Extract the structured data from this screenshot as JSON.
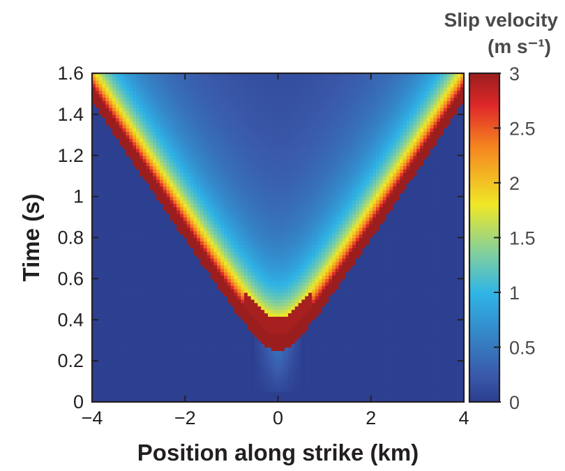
{
  "chart_data": {
    "type": "heatmap",
    "xlabel": "Position along strike (km)",
    "ylabel": "Time (s)",
    "xlim": [
      -4,
      4
    ],
    "ylim": [
      0,
      1.6
    ],
    "x_ticks": [
      -4,
      -2,
      0,
      2,
      4
    ],
    "x_tick_labels": [
      "−4",
      "−2",
      "0",
      "2",
      "4"
    ],
    "y_ticks": [
      0,
      0.2,
      0.4,
      0.6,
      0.8,
      1,
      1.2,
      1.4,
      1.6
    ],
    "y_tick_labels": [
      "0",
      "0.2",
      "0.4",
      "0.6",
      "0.8",
      "1",
      "1.2",
      "1.4",
      "1.6"
    ],
    "colorbar": {
      "title_line1": "Slip velocity",
      "title_line2": "(m s⁻¹)",
      "min": 0,
      "max": 3,
      "ticks": [
        0,
        0.5,
        1,
        1.5,
        2,
        2.5,
        3
      ],
      "tick_labels": [
        "0",
        "0.5",
        "1",
        "1.5",
        "2",
        "2.5",
        "3"
      ],
      "colors": [
        "#2c3e8f",
        "#3a59aa",
        "#2fb4e6",
        "#7fcfa0",
        "#f0e826",
        "#f58220",
        "#e0282a",
        "#9b1e1e"
      ]
    },
    "field": {
      "description_values": {
        "nucleation_position_km": 0,
        "nucleation_time_s": 0.25,
        "rupture_front_speed_km_per_s": 2.95,
        "peak_slip_velocity_at_front_m_per_s": 3,
        "background_slip_velocity_m_per_s": 0
      },
      "front_points": [
        {
          "x": 0,
          "t": 0.25
        },
        {
          "x": -0.6,
          "t": 0.35
        },
        {
          "x": 0.6,
          "t": 0.35
        },
        {
          "x": -1,
          "t": 0.46
        },
        {
          "x": 1,
          "t": 0.46
        },
        {
          "x": -2,
          "t": 0.82
        },
        {
          "x": 2,
          "t": 0.82
        },
        {
          "x": -3,
          "t": 1.18
        },
        {
          "x": 3,
          "t": 1.18
        },
        {
          "x": -4,
          "t": 1.55
        },
        {
          "x": 4,
          "t": 1.55
        }
      ]
    }
  }
}
